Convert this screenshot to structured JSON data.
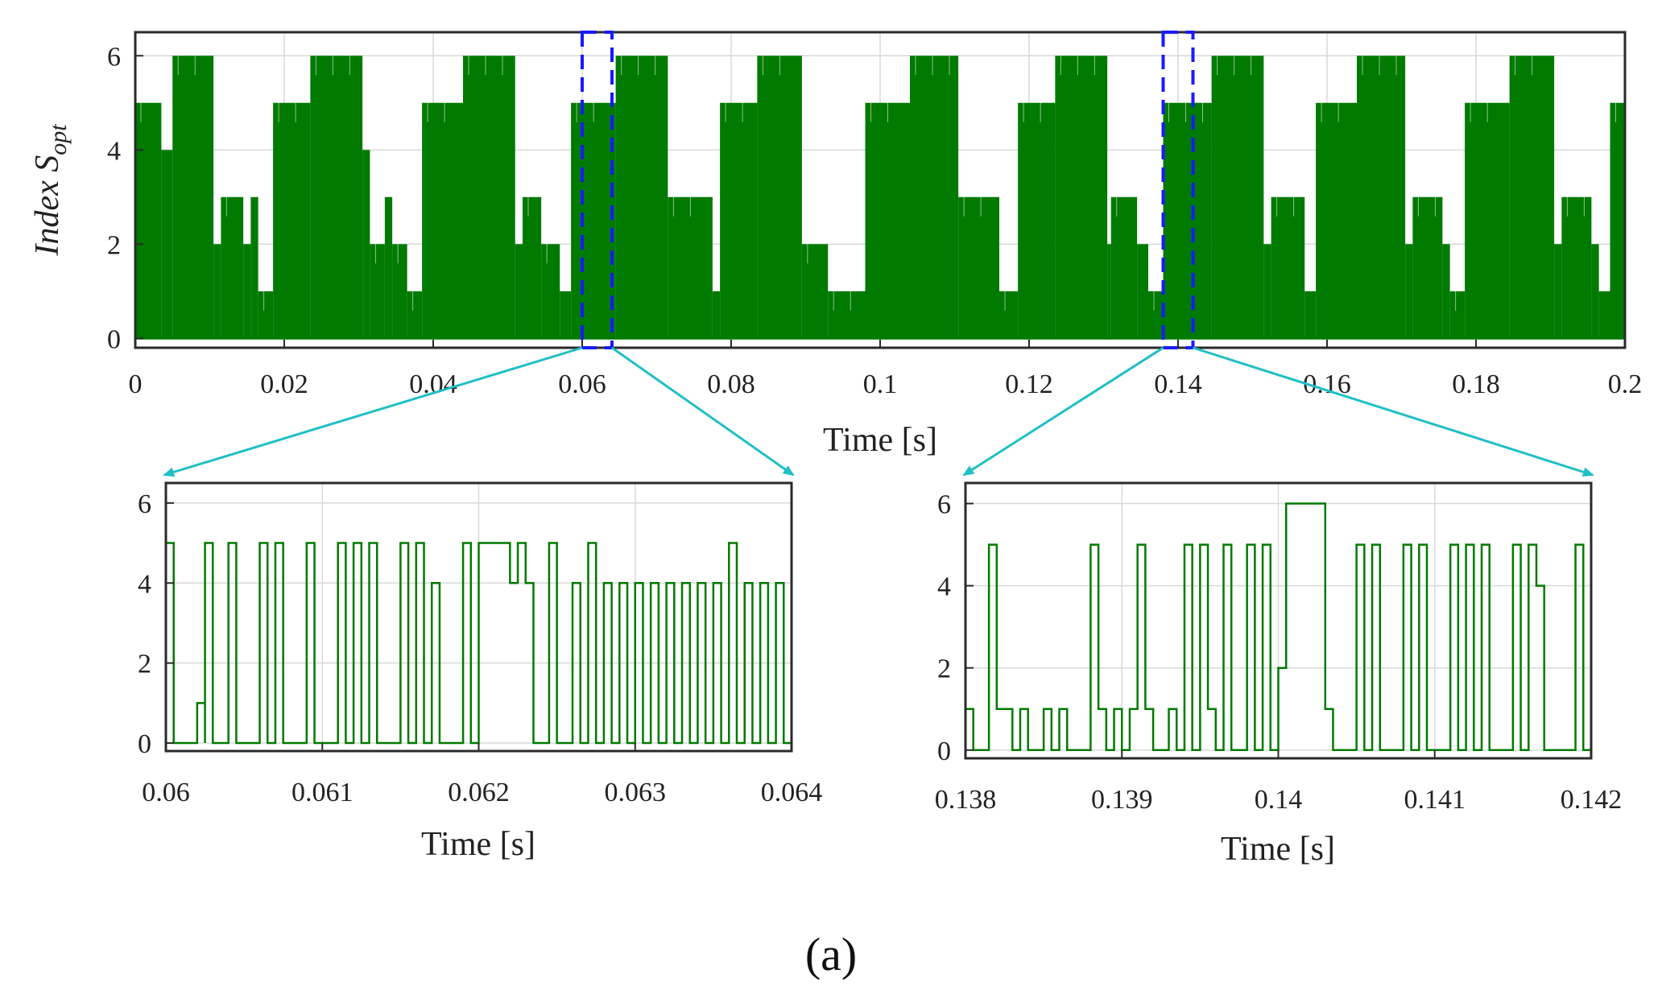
{
  "panel_label": "(a)",
  "colors": {
    "signal": "#007a00",
    "zoom_box": "#1a1aff",
    "connector": "#1fbfc4",
    "frame": "#2a2a2a",
    "grid": "#d9d9d9"
  },
  "chart_data": [
    {
      "id": "overview",
      "type": "line",
      "title": "",
      "xlabel": "Time [s]",
      "ylabel_main": "Index S",
      "ylabel_sub": "opt",
      "xlim": [
        0,
        0.2
      ],
      "ylim": [
        -0.2,
        6.5
      ],
      "xticks": [
        0,
        0.02,
        0.04,
        0.06,
        0.08,
        0.1,
        0.12,
        0.14,
        0.16,
        0.18,
        0.2
      ],
      "xtick_labels": [
        "0",
        "0.02",
        "0.04",
        "0.06",
        "0.08",
        "0.1",
        "0.12",
        "0.14",
        "0.16",
        "0.18",
        "0.2"
      ],
      "yticks": [
        0,
        2,
        4,
        6
      ],
      "ytick_labels": [
        "0",
        "2",
        "4",
        "6"
      ],
      "envelope_segments": [
        [
          0.0,
          5
        ],
        [
          0.0035,
          4
        ],
        [
          0.005,
          6
        ],
        [
          0.0105,
          2
        ],
        [
          0.0115,
          3
        ],
        [
          0.0145,
          2
        ],
        [
          0.0155,
          3
        ],
        [
          0.0165,
          1
        ],
        [
          0.0185,
          5
        ],
        [
          0.0235,
          6
        ],
        [
          0.0305,
          4
        ],
        [
          0.0315,
          2
        ],
        [
          0.0335,
          3
        ],
        [
          0.0345,
          2
        ],
        [
          0.0365,
          1
        ],
        [
          0.0385,
          5
        ],
        [
          0.044,
          6
        ],
        [
          0.051,
          2
        ],
        [
          0.052,
          3
        ],
        [
          0.0545,
          2
        ],
        [
          0.057,
          1
        ],
        [
          0.0585,
          5
        ],
        [
          0.0645,
          6
        ],
        [
          0.0715,
          3
        ],
        [
          0.0775,
          1
        ],
        [
          0.0785,
          5
        ],
        [
          0.0835,
          6
        ],
        [
          0.0895,
          2
        ],
        [
          0.093,
          1
        ],
        [
          0.098,
          5
        ],
        [
          0.104,
          6
        ],
        [
          0.1105,
          3
        ],
        [
          0.116,
          1
        ],
        [
          0.1185,
          5
        ],
        [
          0.1235,
          6
        ],
        [
          0.1305,
          2
        ],
        [
          0.131,
          3
        ],
        [
          0.1345,
          2
        ],
        [
          0.136,
          1
        ],
        [
          0.138,
          5
        ],
        [
          0.1445,
          6
        ],
        [
          0.1515,
          2
        ],
        [
          0.1525,
          3
        ],
        [
          0.157,
          1
        ],
        [
          0.1585,
          5
        ],
        [
          0.164,
          6
        ],
        [
          0.1705,
          2
        ],
        [
          0.1715,
          3
        ],
        [
          0.1755,
          2
        ],
        [
          0.1765,
          1
        ],
        [
          0.1785,
          5
        ],
        [
          0.1845,
          6
        ],
        [
          0.1905,
          2
        ],
        [
          0.1915,
          3
        ],
        [
          0.1955,
          2
        ],
        [
          0.1965,
          1
        ],
        [
          0.198,
          5
        ],
        [
          0.2,
          5
        ]
      ],
      "zoom_windows": [
        [
          0.06,
          0.064
        ],
        [
          0.138,
          0.142
        ]
      ]
    },
    {
      "id": "zoom-1",
      "type": "line",
      "step": true,
      "xlabel": "Time [s]",
      "xlim": [
        0.06,
        0.064
      ],
      "ylim": [
        -0.2,
        6.5
      ],
      "xticks": [
        0.06,
        0.061,
        0.062,
        0.063,
        0.064
      ],
      "xtick_labels": [
        "0.06",
        "0.061",
        "0.062",
        "0.063",
        "0.064"
      ],
      "yticks": [
        0,
        2,
        4,
        6
      ],
      "ytick_labels": [
        "0",
        "2",
        "4",
        "6"
      ],
      "points": [
        [
          0.06,
          5
        ],
        [
          0.06005,
          0
        ],
        [
          0.0602,
          1
        ],
        [
          0.06025,
          0
        ],
        [
          0.06025,
          0
        ],
        [
          0.06025,
          5
        ],
        [
          0.0603,
          0
        ],
        [
          0.0604,
          5
        ],
        [
          0.06045,
          0
        ],
        [
          0.0606,
          5
        ],
        [
          0.06065,
          0
        ],
        [
          0.0607,
          0
        ],
        [
          0.0607,
          5
        ],
        [
          0.06075,
          0
        ],
        [
          0.0609,
          5
        ],
        [
          0.06095,
          0
        ],
        [
          0.0611,
          5
        ],
        [
          0.06115,
          0
        ],
        [
          0.0612,
          5
        ],
        [
          0.06125,
          0
        ],
        [
          0.0613,
          5
        ],
        [
          0.06135,
          0
        ],
        [
          0.0615,
          5
        ],
        [
          0.06155,
          0
        ],
        [
          0.0616,
          5
        ],
        [
          0.06165,
          0
        ],
        [
          0.0617,
          4
        ],
        [
          0.06175,
          0
        ],
        [
          0.0619,
          5
        ],
        [
          0.06195,
          0
        ],
        [
          0.062,
          5
        ],
        [
          0.06215,
          5
        ],
        [
          0.0622,
          4
        ],
        [
          0.06225,
          5
        ],
        [
          0.0623,
          4
        ],
        [
          0.06235,
          0
        ],
        [
          0.06245,
          5
        ],
        [
          0.0625,
          0
        ],
        [
          0.0626,
          4
        ],
        [
          0.06265,
          0
        ],
        [
          0.0627,
          5
        ],
        [
          0.06275,
          0
        ],
        [
          0.0628,
          4
        ],
        [
          0.06285,
          0
        ],
        [
          0.0629,
          4
        ],
        [
          0.06295,
          0
        ],
        [
          0.063,
          4
        ],
        [
          0.06305,
          0
        ],
        [
          0.0631,
          4
        ],
        [
          0.06315,
          0
        ],
        [
          0.0632,
          4
        ],
        [
          0.06325,
          0
        ],
        [
          0.0633,
          4
        ],
        [
          0.06335,
          0
        ],
        [
          0.0634,
          4
        ],
        [
          0.06345,
          0
        ],
        [
          0.0635,
          4
        ],
        [
          0.06355,
          0
        ],
        [
          0.0636,
          5
        ],
        [
          0.06365,
          0
        ],
        [
          0.0637,
          4
        ],
        [
          0.06375,
          0
        ],
        [
          0.0638,
          4
        ],
        [
          0.06385,
          0
        ],
        [
          0.0639,
          4
        ],
        [
          0.06395,
          0
        ],
        [
          0.064,
          4
        ],
        [
          0.064,
          0
        ]
      ]
    },
    {
      "id": "zoom-2",
      "type": "line",
      "step": true,
      "xlabel": "Time [s]",
      "xlim": [
        0.138,
        0.142
      ],
      "ylim": [
        -0.2,
        6.5
      ],
      "xticks": [
        0.138,
        0.139,
        0.14,
        0.141,
        0.142
      ],
      "xtick_labels": [
        "0.138",
        "0.139",
        "0.14",
        "0.141",
        "0.142"
      ],
      "yticks": [
        0,
        2,
        4,
        6
      ],
      "ytick_labels": [
        "0",
        "2",
        "4",
        "6"
      ],
      "points": [
        [
          0.138,
          1
        ],
        [
          0.13805,
          0
        ],
        [
          0.13815,
          5
        ],
        [
          0.1382,
          1
        ],
        [
          0.1383,
          0
        ],
        [
          0.13835,
          1
        ],
        [
          0.1384,
          0
        ],
        [
          0.1385,
          1
        ],
        [
          0.13855,
          0
        ],
        [
          0.1386,
          1
        ],
        [
          0.13865,
          0
        ],
        [
          0.1388,
          5
        ],
        [
          0.13885,
          1
        ],
        [
          0.1389,
          0
        ],
        [
          0.13895,
          1
        ],
        [
          0.139,
          0
        ],
        [
          0.13905,
          1
        ],
        [
          0.1391,
          5
        ],
        [
          0.13915,
          1
        ],
        [
          0.1392,
          0
        ],
        [
          0.1393,
          1
        ],
        [
          0.13935,
          0
        ],
        [
          0.1394,
          5
        ],
        [
          0.13945,
          0
        ],
        [
          0.1395,
          5
        ],
        [
          0.13955,
          1
        ],
        [
          0.1396,
          0
        ],
        [
          0.13965,
          5
        ],
        [
          0.1397,
          0
        ],
        [
          0.1398,
          5
        ],
        [
          0.13985,
          0
        ],
        [
          0.1399,
          5
        ],
        [
          0.13995,
          0
        ],
        [
          0.14,
          2
        ],
        [
          0.14005,
          6
        ],
        [
          0.1401,
          6
        ],
        [
          0.1403,
          1
        ],
        [
          0.14035,
          0
        ],
        [
          0.1405,
          5
        ],
        [
          0.14055,
          0
        ],
        [
          0.1406,
          5
        ],
        [
          0.14065,
          0
        ],
        [
          0.1408,
          5
        ],
        [
          0.14085,
          0
        ],
        [
          0.1409,
          5
        ],
        [
          0.14095,
          0
        ],
        [
          0.1411,
          5
        ],
        [
          0.14115,
          0
        ],
        [
          0.1412,
          5
        ],
        [
          0.14125,
          0
        ],
        [
          0.1413,
          5
        ],
        [
          0.14135,
          0
        ],
        [
          0.1415,
          5
        ],
        [
          0.14155,
          0
        ],
        [
          0.1416,
          5
        ],
        [
          0.14165,
          4
        ],
        [
          0.1417,
          0
        ],
        [
          0.1419,
          5
        ],
        [
          0.14195,
          0
        ],
        [
          0.142,
          0
        ]
      ]
    }
  ]
}
